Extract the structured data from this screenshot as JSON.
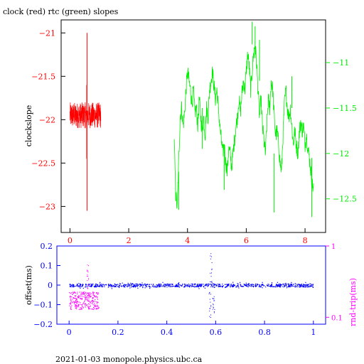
{
  "colors": {
    "red": "#ff0000",
    "green": "#00ee00",
    "blue": "#0000ff",
    "magenta": "#ff00ff",
    "black": "#000000"
  },
  "chart_data": [
    {
      "type": "line",
      "title": "clock (red) rtc (green) slopes",
      "ylabel": "clockslope",
      "xlim": [
        -0.3,
        8.7
      ],
      "ylim_left": [
        -23.3,
        -20.85
      ],
      "ylim_right": [
        -12.87,
        -10.53
      ],
      "x_ticks": [
        0,
        2,
        4,
        6,
        8
      ],
      "y_ticks_left": [
        -21,
        -21.5,
        -22,
        -22.5,
        -23
      ],
      "y_ticks_right": [
        -11,
        -11.5,
        -12,
        -12.5
      ],
      "series": [
        {
          "color": "red",
          "axis": "left",
          "x_range": [
            0.0,
            1.05
          ],
          "center": -21.95,
          "band": 0.15,
          "spikes": [
            [
              0.58,
              -21.0,
              -23.05
            ],
            [
              0.57,
              -21.6,
              -22.45
            ]
          ]
        },
        {
          "color": "green",
          "axis": "right",
          "points": [
            [
              3.55,
              -11.9
            ],
            [
              3.6,
              -12.45
            ],
            [
              3.65,
              -12.6
            ],
            [
              3.7,
              -12.1
            ],
            [
              3.75,
              -11.6
            ],
            [
              3.8,
              -11.5
            ],
            [
              3.85,
              -11.7
            ],
            [
              3.9,
              -11.55
            ],
            [
              3.95,
              -11.3
            ],
            [
              4.0,
              -11.1
            ],
            [
              4.05,
              -11.2
            ],
            [
              4.1,
              -11.3
            ],
            [
              4.15,
              -11.45
            ],
            [
              4.2,
              -11.3
            ],
            [
              4.25,
              -11.55
            ],
            [
              4.3,
              -11.5
            ],
            [
              4.35,
              -11.7
            ],
            [
              4.4,
              -11.4
            ],
            [
              4.45,
              -11.6
            ],
            [
              4.5,
              -11.75
            ],
            [
              4.55,
              -11.6
            ],
            [
              4.6,
              -11.8
            ],
            [
              4.65,
              -11.5
            ],
            [
              4.7,
              -11.6
            ],
            [
              4.75,
              -11.3
            ],
            [
              4.8,
              -11.2
            ],
            [
              4.85,
              -11.1
            ],
            [
              4.9,
              -11.25
            ],
            [
              4.95,
              -11.4
            ],
            [
              5.0,
              -11.3
            ],
            [
              5.05,
              -11.5
            ],
            [
              5.1,
              -11.7
            ],
            [
              5.15,
              -11.85
            ],
            [
              5.2,
              -12.0
            ],
            [
              5.25,
              -11.9
            ],
            [
              5.3,
              -12.1
            ],
            [
              5.35,
              -12.2
            ],
            [
              5.4,
              -11.95
            ],
            [
              5.45,
              -12.0
            ],
            [
              5.5,
              -12.15
            ],
            [
              5.55,
              -12.0
            ],
            [
              5.6,
              -11.85
            ],
            [
              5.65,
              -11.7
            ],
            [
              5.7,
              -11.6
            ],
            [
              5.75,
              -11.4
            ],
            [
              5.8,
              -11.55
            ],
            [
              5.85,
              -11.35
            ],
            [
              5.9,
              -11.2
            ],
            [
              5.95,
              -11.3
            ],
            [
              6.0,
              -11.1
            ],
            [
              6.05,
              -10.9
            ],
            [
              6.1,
              -11.05
            ],
            [
              6.15,
              -11.3
            ],
            [
              6.2,
              -11.1
            ],
            [
              6.25,
              -10.9
            ],
            [
              6.3,
              -10.8
            ],
            [
              6.35,
              -11.0
            ],
            [
              6.4,
              -11.3
            ],
            [
              6.45,
              -11.6
            ],
            [
              6.5,
              -11.4
            ],
            [
              6.55,
              -11.7
            ],
            [
              6.6,
              -11.85
            ],
            [
              6.65,
              -12.0
            ],
            [
              6.7,
              -11.7
            ],
            [
              6.75,
              -11.4
            ],
            [
              6.8,
              -11.5
            ],
            [
              6.85,
              -11.2
            ],
            [
              6.9,
              -11.3
            ],
            [
              6.95,
              -11.6
            ],
            [
              7.0,
              -11.8
            ],
            [
              7.05,
              -11.75
            ],
            [
              7.1,
              -11.9
            ],
            [
              7.15,
              -12.1
            ],
            [
              7.2,
              -12.2
            ],
            [
              7.25,
              -11.8
            ],
            [
              7.3,
              -11.45
            ],
            [
              7.35,
              -11.3
            ],
            [
              7.4,
              -11.5
            ],
            [
              7.45,
              -11.6
            ],
            [
              7.5,
              -11.5
            ],
            [
              7.55,
              -11.7
            ],
            [
              7.6,
              -11.9
            ],
            [
              7.65,
              -11.75
            ],
            [
              7.7,
              -11.9
            ],
            [
              7.75,
              -12.0
            ],
            [
              7.8,
              -11.8
            ],
            [
              7.85,
              -11.65
            ],
            [
              7.9,
              -11.75
            ],
            [
              7.95,
              -11.7
            ],
            [
              8.0,
              -11.9
            ],
            [
              8.05,
              -11.8
            ],
            [
              8.1,
              -11.95
            ],
            [
              8.15,
              -12.05
            ],
            [
              8.2,
              -12.2
            ],
            [
              8.25,
              -12.35
            ],
            [
              8.3,
              -12.4
            ]
          ],
          "spikes": [
            [
              3.7,
              -12.2,
              -12.62
            ],
            [
              4.5,
              -11.5,
              -11.95
            ],
            [
              5.25,
              -11.9,
              -12.4
            ],
            [
              6.2,
              -10.55,
              -10.8
            ],
            [
              6.3,
              -10.6,
              -10.95
            ],
            [
              6.45,
              -10.75,
              -11.2
            ],
            [
              6.95,
              -12.0,
              -12.65
            ],
            [
              7.55,
              -11.15,
              -11.5
            ],
            [
              8.23,
              -12.05,
              -12.7
            ]
          ]
        }
      ]
    },
    {
      "type": "scatter",
      "ylabel_left": "offset(ms)",
      "ylabel_right": "rnd-trip(ms)",
      "xlim": [
        -0.05,
        1.05
      ],
      "ylim_left": [
        -0.2,
        0.2
      ],
      "ylim_right_log": [
        0.08,
        1.0
      ],
      "x_ticks": [
        "0",
        "0.2",
        "0.4",
        "0.6",
        "0.8",
        "1"
      ],
      "y_ticks_left": [
        "0.2",
        "0.1",
        "0",
        "−0.1",
        "−0.2"
      ],
      "y_ticks_right": [
        "1",
        "0.1"
      ],
      "series": [
        {
          "color": "blue",
          "axis": "left",
          "x_range": [
            0,
            1.0
          ],
          "center": 0.0,
          "band": 0.008,
          "outliers": [
            [
              0.575,
              -0.02,
              -0.17
            ],
            [
              0.58,
              0.01,
              0.18
            ],
            [
              0.59,
              -0.05,
              -0.14
            ]
          ]
        },
        {
          "color": "magenta",
          "axis": "right",
          "x_range": [
            0,
            0.12
          ],
          "center": 0.18,
          "band": 0.05,
          "spike": [
            0.075,
            0.55
          ]
        }
      ]
    }
  ],
  "footer": "2021-01-03  monopole.physics.ubc.ca"
}
